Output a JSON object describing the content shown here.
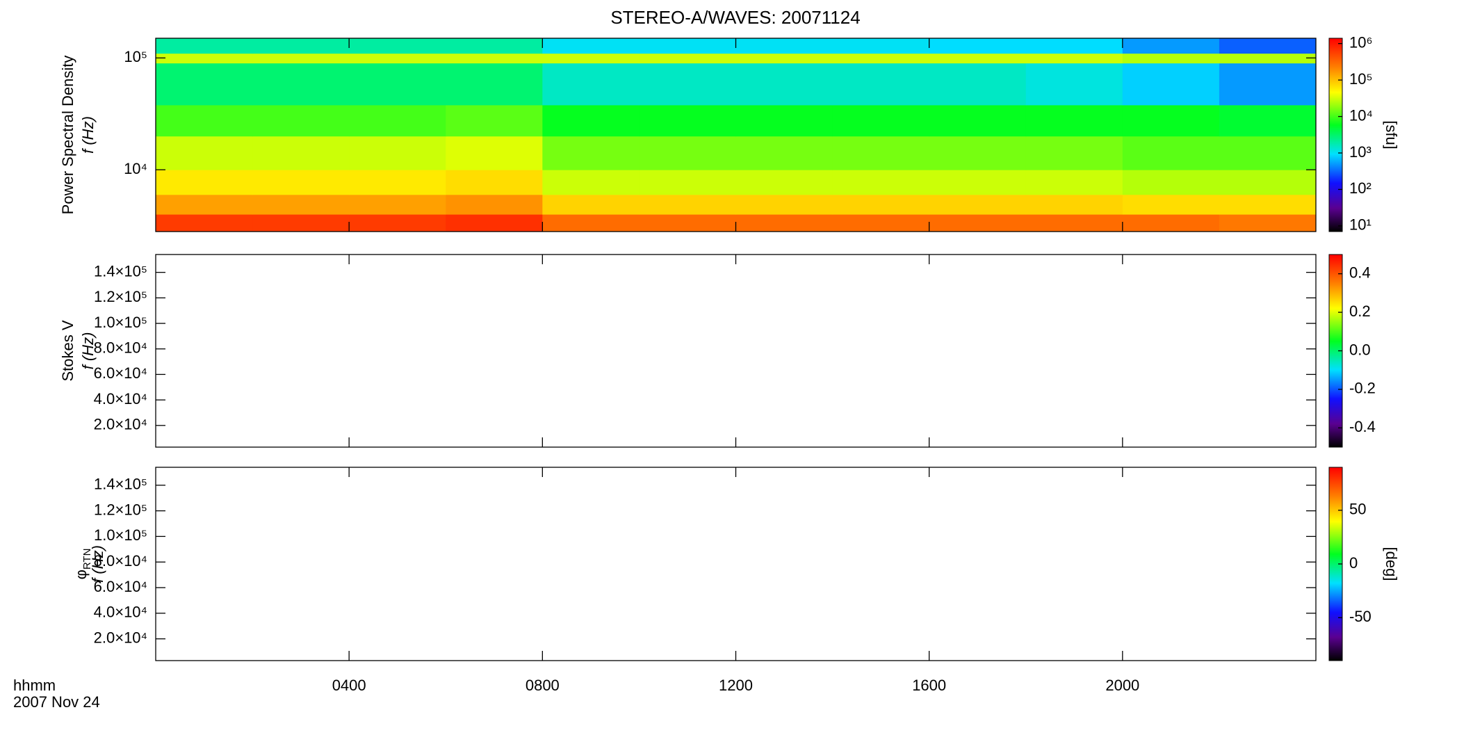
{
  "chart_data": [
    {
      "type": "heatmap",
      "title": "STEREO-A/WAVES: 20071124",
      "ylabel": [
        "Power Spectral Density",
        "f (Hz)"
      ],
      "log": true,
      "ylim": [
        2800,
        150000
      ],
      "yticks": [
        {
          "value": 10000,
          "label": "10⁴"
        },
        {
          "value": 100000,
          "label": "10⁵"
        }
      ],
      "xlim": [
        0,
        24
      ],
      "xticks": [
        4,
        8,
        12,
        16,
        20
      ],
      "colormap": "rainbow",
      "clog": true,
      "clim": [
        7,
        1400000
      ],
      "cticks": [
        {
          "value": 10,
          "label": "10¹"
        },
        {
          "value": 100,
          "label": "10²"
        },
        {
          "value": 1000,
          "label": "10³"
        },
        {
          "value": 10000,
          "label": "10⁴"
        },
        {
          "value": 100000,
          "label": "10⁵"
        },
        {
          "value": 1000000,
          "label": "10⁶"
        }
      ],
      "clabel": "[sfu]",
      "xbins": [
        0,
        2,
        4,
        6,
        8,
        10,
        12,
        14,
        16,
        18,
        20,
        22,
        24
      ],
      "ybins": [
        2800,
        4000,
        6000,
        10000,
        20000,
        38000,
        90000,
        110000,
        150000
      ],
      "z": [
        [
          600000,
          600000,
          600000,
          700000,
          300000,
          300000,
          300000,
          300000,
          300000,
          300000,
          300000,
          250000
        ],
        [
          150000,
          150000,
          150000,
          180000,
          80000,
          80000,
          80000,
          80000,
          80000,
          80000,
          70000,
          70000
        ],
        [
          60000,
          60000,
          60000,
          70000,
          30000,
          30000,
          30000,
          30000,
          30000,
          30000,
          25000,
          25000
        ],
        [
          30000,
          30000,
          30000,
          35000,
          15000,
          15000,
          15000,
          15000,
          15000,
          15000,
          12000,
          12000
        ],
        [
          10000,
          10000,
          10000,
          12000,
          6000,
          6000,
          6000,
          6000,
          6000,
          6000,
          6000,
          5000
        ],
        [
          3000,
          3000,
          3000,
          3000,
          1500,
          1500,
          1500,
          1500,
          1500,
          1200,
          800,
          500
        ],
        [
          30000,
          30000,
          30000,
          30000,
          30000,
          30000,
          30000,
          30000,
          30000,
          30000,
          25000,
          25000
        ],
        [
          2000,
          2000,
          2000,
          2000,
          1000,
          1000,
          1000,
          1000,
          900,
          900,
          500,
          300
        ]
      ]
    },
    {
      "type": "heatmap",
      "ylabel": [
        "Stokes V",
        "f (Hz)"
      ],
      "log": false,
      "ylim": [
        3000,
        154000
      ],
      "yticks": [
        {
          "value": 20000,
          "label": "2.0×10⁴"
        },
        {
          "value": 40000,
          "label": "4.0×10⁴"
        },
        {
          "value": 60000,
          "label": "6.0×10⁴"
        },
        {
          "value": 80000,
          "label": "8.0×10⁴"
        },
        {
          "value": 100000,
          "label": "1.0×10⁵"
        },
        {
          "value": 120000,
          "label": "1.2×10⁵"
        },
        {
          "value": 140000,
          "label": "1.4×10⁵"
        }
      ],
      "xlim": [
        0,
        24
      ],
      "xticks": [
        4,
        8,
        12,
        16,
        20
      ],
      "colormap": "rainbow",
      "clog": false,
      "clim": [
        -0.5,
        0.5
      ],
      "cticks": [
        -0.4,
        -0.2,
        {
          "value": 0,
          "label": "0.0"
        },
        0.2,
        0.4
      ]
    },
    {
      "type": "heatmap",
      "ylabel": [
        "φ",
        "f (Hz)"
      ],
      "ylabel_subscript": "RTN",
      "log": false,
      "ylim": [
        3000,
        154000
      ],
      "yticks": [
        {
          "value": 20000,
          "label": "2.0×10⁴"
        },
        {
          "value": 40000,
          "label": "4.0×10⁴"
        },
        {
          "value": 60000,
          "label": "6.0×10⁴"
        },
        {
          "value": 80000,
          "label": "8.0×10⁴"
        },
        {
          "value": 100000,
          "label": "1.0×10⁵"
        },
        {
          "value": 120000,
          "label": "1.2×10⁵"
        },
        {
          "value": 140000,
          "label": "1.4×10⁵"
        }
      ],
      "xlim": [
        0,
        24
      ],
      "xticks": [
        {
          "value": 4,
          "label": "0400"
        },
        {
          "value": 8,
          "label": "0800"
        },
        {
          "value": 12,
          "label": "1200"
        },
        {
          "value": 16,
          "label": "1600"
        },
        {
          "value": 20,
          "label": "2000"
        }
      ],
      "xlabel": "hhmm",
      "date": "2007 Nov 24",
      "colormap": "rainbow",
      "clog": false,
      "clim": [
        -90,
        90
      ],
      "cticks": [
        -50,
        0,
        50
      ],
      "clabel": "[deg]"
    }
  ]
}
